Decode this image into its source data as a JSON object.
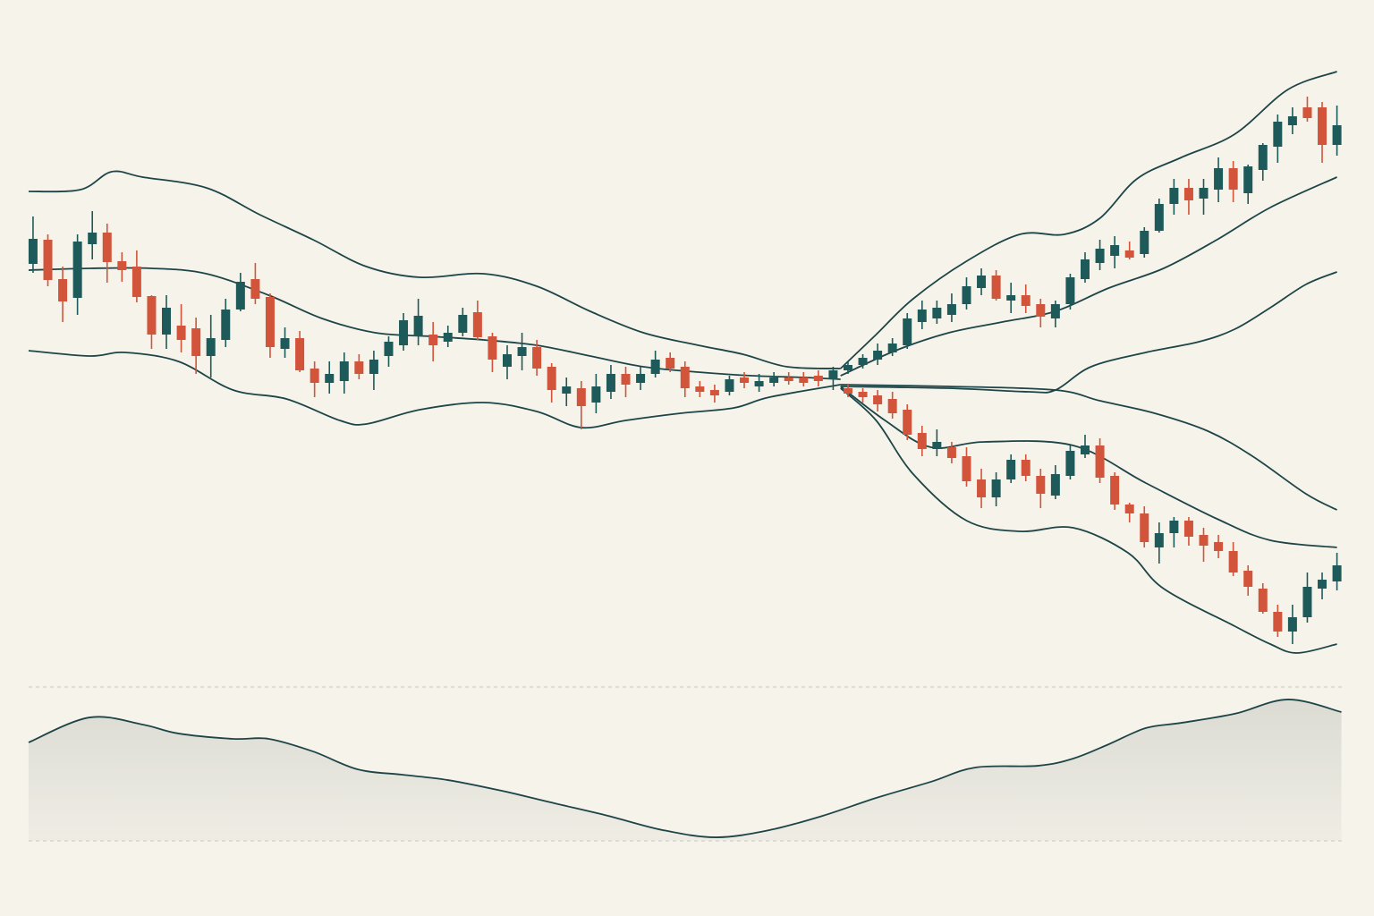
{
  "chart_data": [
    {
      "type": "candlestick",
      "xlim": [
        -2.23,
        90.5
      ],
      "ylim": [
        0,
        76
      ],
      "up_color": "#1f5a5a",
      "down_color": "#d2543a",
      "line_color": "#1d4548",
      "series": [
        {
          "x": [
            0,
            1,
            2,
            3,
            4,
            5,
            6,
            7,
            8,
            9,
            10,
            11,
            12,
            13,
            14,
            15,
            16,
            17,
            18,
            19,
            20,
            21,
            22,
            23,
            24,
            25,
            26,
            27,
            28,
            29,
            30,
            31,
            32,
            33,
            34,
            35,
            36,
            37,
            38,
            39,
            40,
            41,
            42,
            43,
            44,
            45,
            46,
            47,
            48,
            49,
            50,
            51,
            52,
            53,
            54
          ],
          "open": [
            46.5,
            49.2,
            44.8,
            42.7,
            48.7,
            50.0,
            46.8,
            46.2,
            42.9,
            38.6,
            39.6,
            39.3,
            36.2,
            38.0,
            41.4,
            44.8,
            42.8,
            37,
            38.2,
            34.8,
            33.2,
            33.4,
            35.6,
            34.2,
            36.2,
            37.4,
            38.4,
            38.6,
            37.8,
            38.8,
            41.1,
            38.4,
            35,
            36.2,
            37.2,
            35,
            32,
            32.6,
            31,
            32.2,
            34.2,
            33.2,
            34.2,
            36,
            35,
            32.8,
            32.4,
            32.2,
            33.8,
            32.8,
            33.2,
            33.8,
            33.8,
            34,
            33.6
          ],
          "high": [
            51.8,
            49.8,
            46.2,
            49.8,
            52.4,
            51.0,
            47.8,
            48,
            43,
            43,
            42,
            40.5,
            40.8,
            42.6,
            45.5,
            46.6,
            43.2,
            39.4,
            39,
            35.6,
            35.6,
            36.6,
            36.4,
            36.8,
            38.4,
            41,
            42.6,
            40,
            39.6,
            41.6,
            42.4,
            38.8,
            37.4,
            38.8,
            38,
            35.4,
            33.8,
            33.4,
            34.2,
            35.2,
            35,
            35,
            36.8,
            36.6,
            35.6,
            33.4,
            33,
            34,
            34.4,
            34.2,
            34.4,
            34.4,
            34.4,
            34.6,
            35
          ],
          "low": [
            45.5,
            44.0,
            40.0,
            40.8,
            47.0,
            44.4,
            44.5,
            42.2,
            37,
            37,
            36.6,
            34.2,
            33.8,
            37.2,
            41.2,
            42,
            36,
            36,
            34.4,
            31.6,
            32,
            32,
            33.6,
            32.4,
            35,
            36.8,
            37.4,
            35.6,
            37.2,
            38.4,
            38,
            34.4,
            33.6,
            34.6,
            34,
            31,
            30.6,
            28,
            29.8,
            31.4,
            31.6,
            32.4,
            33.8,
            34.4,
            31.6,
            31.6,
            31,
            31.8,
            32.6,
            32.2,
            32.8,
            33,
            32.8,
            32.8,
            32.4
          ],
          "close": [
            49.3,
            44.7,
            42.3,
            49.0,
            50.0,
            46.7,
            45.8,
            42.8,
            38.6,
            41.6,
            38.0,
            36.2,
            38.2,
            41.4,
            44.5,
            42.6,
            37.2,
            38.2,
            34.6,
            33.2,
            34.2,
            35.6,
            34.2,
            35.8,
            37.8,
            40.2,
            40.7,
            37.4,
            38.8,
            40.8,
            38.3,
            35.8,
            36.4,
            37.2,
            34.8,
            32.4,
            32.8,
            30.6,
            32.8,
            34.2,
            33,
            34.2,
            35.8,
            34.8,
            32.6,
            32.2,
            31.8,
            33.6,
            33.2,
            33.4,
            33.8,
            33.4,
            33.2,
            33.4,
            34.6
          ]
        },
        {
          "x": [
            55,
            56,
            57,
            58,
            59,
            60,
            61,
            62,
            63,
            64,
            65,
            66,
            67,
            68,
            69,
            70,
            71,
            72,
            73,
            74,
            75,
            76,
            77,
            78,
            79,
            80,
            81,
            82,
            83,
            84,
            85,
            86,
            87,
            88
          ],
          "open": [
            34.6,
            35.2,
            35.8,
            36.6,
            37.4,
            40,
            40.4,
            40.8,
            42,
            43.8,
            45.2,
            42.4,
            43,
            42,
            40.4,
            42,
            44.8,
            46.6,
            47.4,
            48,
            47.6,
            50.2,
            53.2,
            55,
            53.8,
            54.8,
            57.2,
            54.4,
            57,
            59.6,
            62,
            64,
            64,
            59.8
          ],
          "high": [
            35.6,
            36.4,
            37.6,
            38.2,
            41,
            42.4,
            42.4,
            43.2,
            45,
            46,
            45.8,
            44.4,
            44.2,
            42.6,
            42.4,
            45.4,
            47.8,
            49.2,
            49.6,
            49,
            50.6,
            53.8,
            56,
            56,
            56,
            58.4,
            58,
            57.6,
            60,
            63.2,
            64,
            65.2,
            64.6,
            64.2
          ],
          "low": [
            34.2,
            34.8,
            35.2,
            36.2,
            37,
            39.2,
            39.8,
            40,
            41.4,
            43,
            42.4,
            41,
            41,
            39.4,
            39.4,
            41.4,
            44.4,
            45.8,
            46,
            47,
            47.2,
            50,
            52,
            52,
            52,
            53.4,
            53.4,
            53.2,
            55.8,
            57.8,
            61,
            62.4,
            57.8,
            58.6
          ],
          "close": [
            35.2,
            36,
            36.8,
            37.6,
            40.4,
            41.4,
            41.6,
            42,
            44,
            45.2,
            42.6,
            43,
            41.8,
            40.6,
            42,
            45,
            47,
            48.2,
            48.6,
            47.2,
            50.2,
            53.2,
            55,
            53.6,
            55,
            57.2,
            54.8,
            57.4,
            59.8,
            62.4,
            63,
            62.8,
            59.8,
            62
          ]
        },
        {
          "x": [
            55,
            56,
            57,
            58,
            59,
            60,
            61,
            62,
            63,
            64,
            65,
            66,
            67,
            68,
            69,
            70,
            71,
            72,
            73,
            74,
            75,
            76,
            77,
            78,
            79,
            80,
            81,
            82,
            83,
            84,
            85,
            86,
            87,
            88
          ],
          "open": [
            32.6,
            32.2,
            31.8,
            31.4,
            30.2,
            27.6,
            25.8,
            26,
            25,
            22.4,
            20.4,
            22.4,
            24.6,
            22.8,
            20.6,
            22.8,
            25.2,
            26.2,
            22.8,
            19.6,
            18.6,
            14.8,
            16.4,
            17.8,
            16.2,
            15.4,
            14.4,
            12.2,
            10.2,
            7.6,
            5.4,
            7,
            10.2,
            11
          ],
          "high": [
            33,
            32.6,
            32.4,
            32.2,
            30.8,
            28.4,
            28,
            26.6,
            26,
            23.6,
            23.2,
            25.2,
            25.2,
            23.6,
            24,
            26.2,
            27.4,
            27,
            23.2,
            19.8,
            19.4,
            17.6,
            18.2,
            18.2,
            17,
            16.2,
            15.4,
            12.8,
            10.8,
            8.4,
            8.4,
            12,
            12,
            14.2
          ],
          "low": [
            31.6,
            31,
            30,
            29.2,
            26.8,
            25,
            25,
            24.2,
            21.6,
            19.2,
            19.4,
            22,
            22.2,
            19.2,
            20.2,
            22.4,
            24.8,
            22,
            19,
            17.6,
            14.8,
            13,
            14.8,
            15,
            13.2,
            13.6,
            11.6,
            9.4,
            7.4,
            4.8,
            4,
            6.4,
            9,
            10
          ],
          "close": [
            32,
            31.6,
            30.8,
            29.8,
            27.4,
            25.8,
            26.6,
            24.8,
            22.2,
            20.4,
            22.4,
            24.6,
            22.8,
            20.8,
            23,
            25.6,
            26.2,
            22.6,
            19.6,
            18.6,
            15.4,
            16.4,
            17.8,
            16,
            15,
            14.4,
            12,
            10.4,
            7.6,
            5.4,
            7,
            10.4,
            11.2,
            12.8
          ]
        }
      ],
      "lines": [
        {
          "x": [
            -0.3,
            3.2,
            5.3,
            7.4,
            11.7,
            15.3,
            18.9,
            22.5,
            26.1,
            30.4,
            34.0,
            37.6,
            41.2,
            44.9,
            47.9,
            50.9,
            54.5
          ],
          "values": [
            54.6,
            54.8,
            56.8,
            56.2,
            55,
            52,
            49.2,
            46.2,
            45,
            45.4,
            44,
            41.2,
            38.8,
            37.4,
            36.4,
            35,
            34.8
          ]
        },
        {
          "x": [
            -0.3,
            3.8,
            8.0,
            11.7,
            15.9,
            19.5,
            23.1,
            26.8,
            30.4,
            34.0,
            37.6,
            41.2,
            44.9,
            48.5,
            52.1,
            54.5
          ],
          "values": [
            45.8,
            46,
            46,
            45.4,
            43,
            40.4,
            38.8,
            38.4,
            38,
            37.4,
            36.2,
            35,
            34.4,
            34,
            33.8,
            33.6
          ]
        },
        {
          "x": [
            -0.3,
            3.8,
            6.2,
            9.8,
            13.5,
            17.1,
            20.7,
            22.5,
            26.1,
            30.4,
            34.0,
            37.0,
            40.0,
            43.7,
            47.3,
            49.7,
            54.5
          ],
          "values": [
            36.8,
            36.2,
            36.6,
            35.6,
            32.4,
            31.4,
            29,
            28.6,
            30.2,
            31,
            30,
            28.2,
            29,
            29.8,
            30.4,
            31.6,
            33
          ]
        },
        {
          "x": [
            54.5,
            56.9,
            59.4,
            63.0,
            66.6,
            69.6,
            72.0,
            74.5,
            77.5,
            81.1,
            84.7,
            88.0
          ],
          "values": [
            34.8,
            38.6,
            42.6,
            46.8,
            49.8,
            49.8,
            51.6,
            56,
            58.4,
            61,
            66,
            68
          ]
        },
        {
          "x": [
            54.5,
            58.2,
            61.8,
            65.4,
            69.0,
            72.6,
            76.3,
            79.9,
            83.5,
            88.0
          ],
          "values": [
            34,
            36.8,
            38.8,
            40,
            41.2,
            43.8,
            46,
            49.2,
            52.8,
            56.2
          ]
        },
        {
          "x": [
            54.5,
            61.8,
            67.2,
            69.0,
            71.4,
            75.1,
            78.7,
            81.1,
            83.5,
            85.9,
            88.0
          ],
          "values": [
            32.8,
            32.6,
            32.2,
            32.4,
            35,
            36.6,
            37.8,
            39.2,
            41.6,
            44.2,
            45.6
          ]
        },
        {
          "x": [
            54.5,
            61.8,
            69.0,
            72.0,
            75.7,
            79.3,
            82.3,
            85.9,
            88.0
          ],
          "values": [
            33,
            32.8,
            32.4,
            31.2,
            29.8,
            27.8,
            25,
            20.8,
            19
          ]
        },
        {
          "x": [
            54.5,
            57.5,
            60.6,
            64.2,
            70.2,
            75.1,
            79.9,
            83.5,
            88.0
          ],
          "values": [
            32.8,
            29,
            26,
            26.6,
            26.2,
            22,
            18,
            15.6,
            14.8
          ]
        },
        {
          "x": [
            54.5,
            56.9,
            59.4,
            63.0,
            66.6,
            70.2,
            73.9,
            76.3,
            81.1,
            83.5,
            85.3,
            88.0
          ],
          "values": [
            32.6,
            29,
            23,
            17.8,
            16.6,
            17,
            14.2,
            10.2,
            6,
            4,
            3,
            4
          ]
        }
      ]
    },
    {
      "type": "area",
      "xlim": [
        -2.23,
        90.5
      ],
      "ylim": [
        0,
        100
      ],
      "color": "#1d4548",
      "fill": "#d9d9d1",
      "x": [
        -0.3,
        3.8,
        7.4,
        9.8,
        13.5,
        15.9,
        18.9,
        21.9,
        24.9,
        28.0,
        31.6,
        35.2,
        38.8,
        42.5,
        46.1,
        49.7,
        53.3,
        56.9,
        60.6,
        63.6,
        67.8,
        70.2,
        72.6,
        75.1,
        77.5,
        81.1,
        84.7,
        88.3
      ],
      "values": [
        64,
        80.2,
        75.6,
        69.8,
        66.3,
        66.3,
        58.1,
        46.5,
        43,
        39.5,
        32.6,
        24.4,
        16.3,
        7,
        2.3,
        7,
        16.3,
        27.9,
        38.4,
        47.7,
        48.8,
        53.5,
        62.8,
        73.3,
        76.7,
        82.6,
        91.9,
        83.7
      ]
    }
  ]
}
